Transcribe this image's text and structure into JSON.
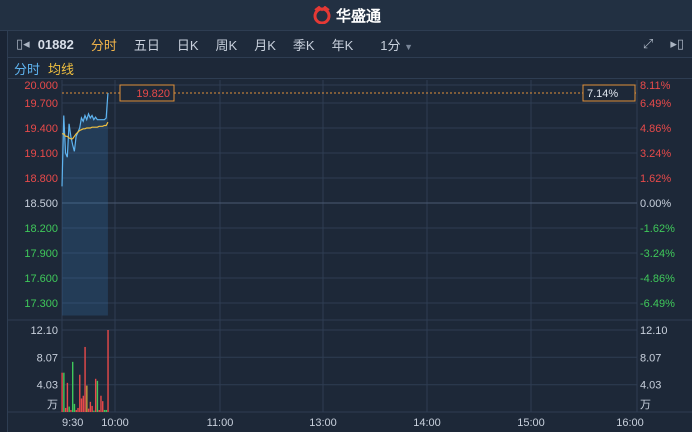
{
  "header": {
    "brand": "华盛通",
    "brand_color": "#e53935"
  },
  "toolbar": {
    "code": "01882",
    "tabs": [
      "分时",
      "五日",
      "日K",
      "周K",
      "月K",
      "季K",
      "年K"
    ],
    "active": "分时",
    "interval": "1分"
  },
  "legend": {
    "price_label": "分时",
    "avg_label": "均线"
  },
  "chart_data": {
    "type": "line",
    "price_axis": [
      "20.000",
      "19.700",
      "19.400",
      "19.100",
      "18.800",
      "18.500",
      "18.200",
      "17.900",
      "17.600",
      "17.300"
    ],
    "pct_axis": [
      "8.11%",
      "6.49%",
      "4.86%",
      "3.24%",
      "1.62%",
      "0.00%",
      "-1.62%",
      "-3.24%",
      "-4.86%",
      "-6.49%"
    ],
    "prev_close": 18.5,
    "crosshair": {
      "price": "19.820",
      "pct": "7.14%"
    },
    "time_labels": [
      "9:30",
      "10:00",
      "11:00",
      "13:00",
      "14:00",
      "15:00",
      "16:00"
    ],
    "price": [
      18.7,
      19.55,
      19.1,
      19.05,
      19.45,
      19.3,
      19.2,
      19.12,
      19.3,
      19.35,
      19.4,
      19.52,
      19.48,
      19.55,
      19.5,
      19.57,
      19.52,
      19.55,
      19.5,
      19.53,
      19.5,
      19.5,
      19.5,
      19.5,
      19.5,
      19.52,
      19.82
    ],
    "avg": [
      19.33,
      19.33,
      19.3,
      19.3,
      19.28,
      19.27,
      19.27,
      19.3,
      19.33,
      19.35,
      19.37,
      19.38,
      19.39,
      19.39,
      19.4,
      19.4,
      19.4,
      19.41,
      19.41,
      19.41,
      19.41,
      19.42,
      19.42,
      19.42,
      19.43,
      19.43,
      19.47
    ],
    "volume_axis": [
      "12.10",
      "8.07",
      "4.03",
      "万"
    ],
    "volume_unit": "万",
    "volume": [
      [
        5.8,
        "r"
      ],
      [
        5.8,
        "g"
      ],
      [
        0.6,
        "r"
      ],
      [
        4.3,
        "r"
      ],
      [
        0.8,
        "g"
      ],
      [
        0.3,
        "r"
      ],
      [
        7.4,
        "g"
      ],
      [
        1.2,
        "g"
      ],
      [
        0.3,
        "r"
      ],
      [
        0.6,
        "r"
      ],
      [
        5.5,
        "r"
      ],
      [
        2,
        "r"
      ],
      [
        2.4,
        "r"
      ],
      [
        9.6,
        "r"
      ],
      [
        3.9,
        "y"
      ],
      [
        0.5,
        "r"
      ],
      [
        1.5,
        "r"
      ],
      [
        0.9,
        "r"
      ],
      [
        0.2,
        "g"
      ],
      [
        4.9,
        "r"
      ],
      [
        4.6,
        "g"
      ],
      [
        0.3,
        "r"
      ],
      [
        2.4,
        "r"
      ],
      [
        1.6,
        "r"
      ],
      [
        0.3,
        "g"
      ],
      [
        0.3,
        "g"
      ],
      [
        12.1,
        "r"
      ]
    ],
    "colors": {
      "price": "#5fb4f0",
      "avg": "#f0c040",
      "up": "#e84a4a",
      "down": "#3fc85a",
      "crosshair": "#e0903a"
    }
  }
}
